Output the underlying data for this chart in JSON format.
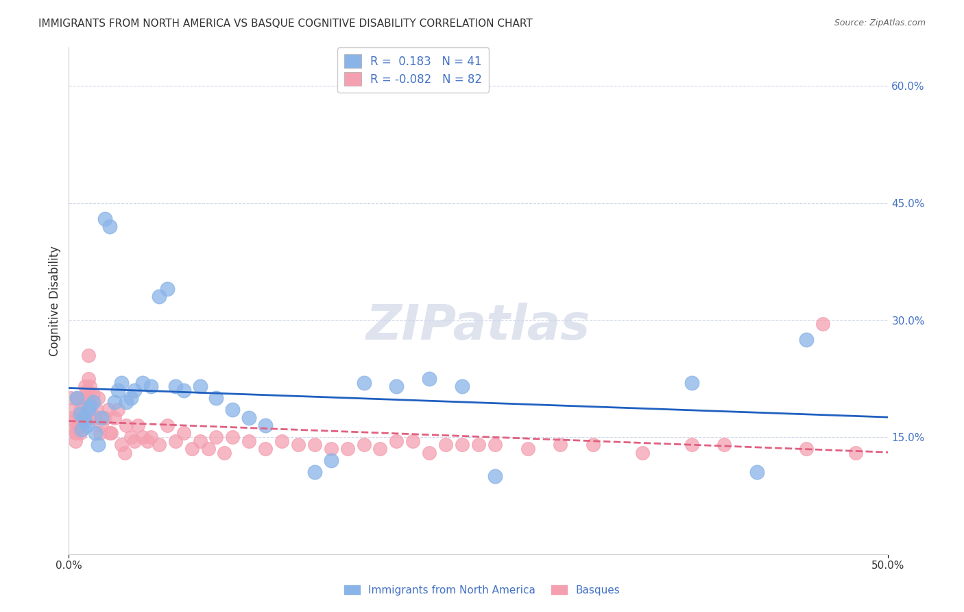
{
  "title": "IMMIGRANTS FROM NORTH AMERICA VS BASQUE COGNITIVE DISABILITY CORRELATION CHART",
  "source": "Source: ZipAtlas.com",
  "ylabel": "Cognitive Disability",
  "xlim": [
    0.0,
    0.5
  ],
  "ylim": [
    0.0,
    0.65
  ],
  "ytick_right_labels": [
    "15.0%",
    "30.0%",
    "45.0%",
    "60.0%"
  ],
  "ytick_right_values": [
    0.15,
    0.3,
    0.45,
    0.6
  ],
  "legend_bottom": [
    "Immigrants from North America",
    "Basques"
  ],
  "legend_box": {
    "blue_r": 0.183,
    "blue_n": 41,
    "pink_r": -0.082,
    "pink_n": 82
  },
  "blue_color": "#8ab4e8",
  "pink_color": "#f4a0b0",
  "blue_line_color": "#2060c0",
  "pink_line_color": "#e06080",
  "background_color": "#ffffff",
  "grid_color": "#d0d8e8",
  "blue_scatter_x": [
    0.005,
    0.007,
    0.008,
    0.009,
    0.01,
    0.011,
    0.012,
    0.013,
    0.015,
    0.016,
    0.018,
    0.02,
    0.022,
    0.025,
    0.028,
    0.03,
    0.032,
    0.035,
    0.038,
    0.04,
    0.045,
    0.05,
    0.055,
    0.06,
    0.065,
    0.07,
    0.08,
    0.09,
    0.1,
    0.11,
    0.12,
    0.15,
    0.16,
    0.18,
    0.2,
    0.22,
    0.24,
    0.26,
    0.38,
    0.42,
    0.45
  ],
  "blue_scatter_y": [
    0.2,
    0.18,
    0.16,
    0.175,
    0.17,
    0.165,
    0.185,
    0.19,
    0.195,
    0.155,
    0.14,
    0.175,
    0.43,
    0.42,
    0.195,
    0.21,
    0.22,
    0.195,
    0.2,
    0.21,
    0.22,
    0.215,
    0.33,
    0.34,
    0.215,
    0.21,
    0.215,
    0.2,
    0.185,
    0.175,
    0.165,
    0.105,
    0.12,
    0.22,
    0.215,
    0.225,
    0.215,
    0.1,
    0.22,
    0.105,
    0.275
  ],
  "pink_scatter_x": [
    0.001,
    0.002,
    0.002,
    0.003,
    0.003,
    0.004,
    0.004,
    0.005,
    0.005,
    0.006,
    0.006,
    0.007,
    0.007,
    0.008,
    0.008,
    0.009,
    0.009,
    0.01,
    0.01,
    0.011,
    0.011,
    0.012,
    0.012,
    0.013,
    0.013,
    0.014,
    0.015,
    0.016,
    0.017,
    0.018,
    0.019,
    0.02,
    0.022,
    0.024,
    0.025,
    0.026,
    0.028,
    0.03,
    0.032,
    0.034,
    0.035,
    0.038,
    0.04,
    0.042,
    0.045,
    0.048,
    0.05,
    0.055,
    0.06,
    0.065,
    0.07,
    0.075,
    0.08,
    0.085,
    0.09,
    0.095,
    0.1,
    0.11,
    0.12,
    0.13,
    0.14,
    0.15,
    0.16,
    0.17,
    0.18,
    0.19,
    0.2,
    0.21,
    0.22,
    0.23,
    0.24,
    0.25,
    0.26,
    0.28,
    0.3,
    0.32,
    0.35,
    0.38,
    0.4,
    0.45,
    0.46,
    0.48
  ],
  "pink_scatter_y": [
    0.2,
    0.185,
    0.175,
    0.16,
    0.17,
    0.145,
    0.155,
    0.16,
    0.2,
    0.165,
    0.175,
    0.155,
    0.185,
    0.165,
    0.2,
    0.19,
    0.175,
    0.18,
    0.215,
    0.2,
    0.21,
    0.225,
    0.255,
    0.215,
    0.195,
    0.18,
    0.205,
    0.175,
    0.185,
    0.2,
    0.155,
    0.165,
    0.175,
    0.185,
    0.155,
    0.155,
    0.175,
    0.185,
    0.14,
    0.13,
    0.165,
    0.15,
    0.145,
    0.165,
    0.15,
    0.145,
    0.15,
    0.14,
    0.165,
    0.145,
    0.155,
    0.135,
    0.145,
    0.135,
    0.15,
    0.13,
    0.15,
    0.145,
    0.135,
    0.145,
    0.14,
    0.14,
    0.135,
    0.135,
    0.14,
    0.135,
    0.145,
    0.145,
    0.13,
    0.14,
    0.14,
    0.14,
    0.14,
    0.135,
    0.14,
    0.14,
    0.13,
    0.14,
    0.14,
    0.135,
    0.295,
    0.13
  ]
}
